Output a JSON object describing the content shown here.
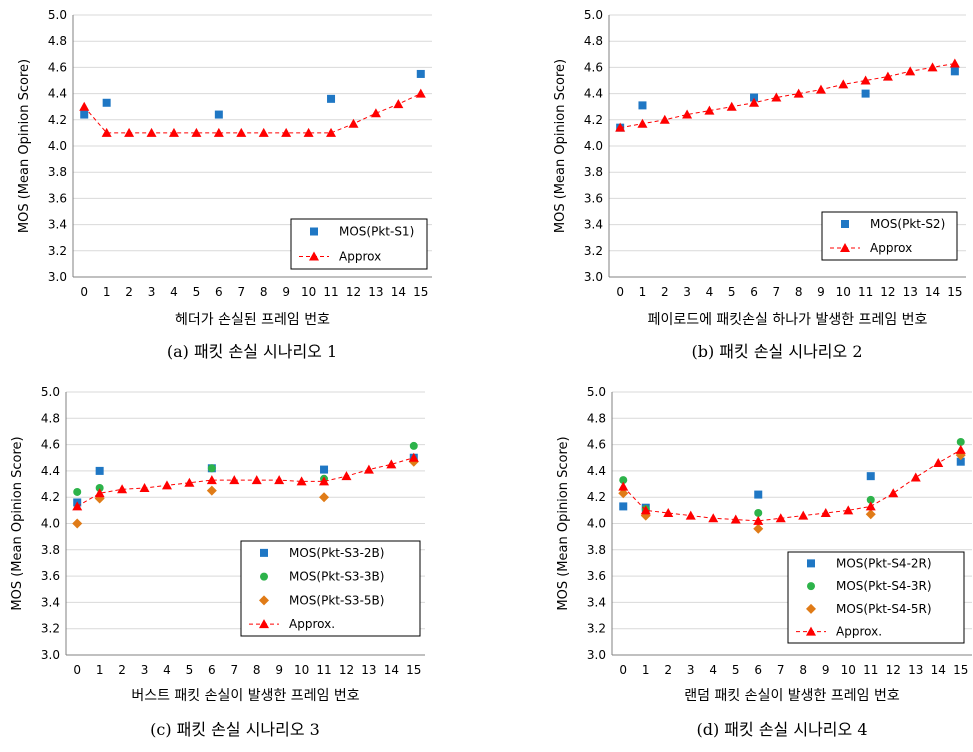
{
  "colors": {
    "blue": "#1f77c4",
    "green": "#2db34a",
    "orange": "#e07b17",
    "red": "#ff0000",
    "grid": "#d9d9d9",
    "axis": "#808080",
    "text": "#000000"
  },
  "chart_data": [
    {
      "id": "a",
      "type": "scatter",
      "caption": "(a)  패킷  손실  시나리오  1",
      "xlabel": "헤더가 손실된 프레임 번호",
      "ylabel": "MOS (Mean Opinion Score)",
      "ylim": [
        3.0,
        5.0
      ],
      "xlim": [
        -0.5,
        15.5
      ],
      "yticks": [
        "3.0",
        "3.2",
        "3.4",
        "3.6",
        "3.8",
        "4.0",
        "4.2",
        "4.4",
        "4.6",
        "4.8",
        "5.0"
      ],
      "xticks": [
        "0",
        "1",
        "2",
        "3",
        "4",
        "5",
        "6",
        "7",
        "8",
        "9",
        "10",
        "11",
        "12",
        "13",
        "14",
        "15"
      ],
      "grid": true,
      "legend": "bottom-right",
      "series": [
        {
          "name": "MOS(Pkt-S1)",
          "marker": "square",
          "color": "blue",
          "x": [
            0,
            1,
            6,
            11,
            15
          ],
          "y": [
            4.24,
            4.33,
            4.24,
            4.36,
            4.55
          ]
        },
        {
          "name": "Approx",
          "marker": "triangle",
          "color": "red",
          "line": "dashed",
          "x": [
            0,
            1,
            2,
            3,
            4,
            5,
            6,
            7,
            8,
            9,
            10,
            11,
            12,
            13,
            14,
            15
          ],
          "y": [
            4.3,
            4.1,
            4.1,
            4.1,
            4.1,
            4.1,
            4.1,
            4.1,
            4.1,
            4.1,
            4.1,
            4.1,
            4.17,
            4.25,
            4.32,
            4.4
          ]
        }
      ]
    },
    {
      "id": "b",
      "type": "scatter",
      "caption": "(b)  패킷  손실  시나리오  2",
      "xlabel": "페이로드에 패킷손실 하나가 발생한 프레임 번호",
      "ylabel": "MOS (Mean Opinion Score)",
      "ylim": [
        3.0,
        5.0
      ],
      "xlim": [
        -0.5,
        15.5
      ],
      "yticks": [
        "3.0",
        "3.2",
        "3.4",
        "3.6",
        "3.8",
        "4.0",
        "4.2",
        "4.4",
        "4.6",
        "4.8",
        "5.0"
      ],
      "xticks": [
        "0",
        "1",
        "2",
        "3",
        "4",
        "5",
        "6",
        "7",
        "8",
        "9",
        "10",
        "11",
        "12",
        "13",
        "14",
        "15"
      ],
      "grid": true,
      "legend": "bottom-right",
      "series": [
        {
          "name": "MOS(Pkt-S2)",
          "marker": "square",
          "color": "blue",
          "x": [
            0,
            1,
            6,
            11,
            15
          ],
          "y": [
            4.14,
            4.31,
            4.37,
            4.4,
            4.57
          ]
        },
        {
          "name": "Approx",
          "marker": "triangle",
          "color": "red",
          "line": "dashed",
          "x": [
            0,
            1,
            2,
            3,
            4,
            5,
            6,
            7,
            8,
            9,
            10,
            11,
            12,
            13,
            14,
            15
          ],
          "y": [
            4.14,
            4.17,
            4.2,
            4.24,
            4.27,
            4.3,
            4.33,
            4.37,
            4.4,
            4.43,
            4.47,
            4.5,
            4.53,
            4.57,
            4.6,
            4.63
          ]
        }
      ]
    },
    {
      "id": "c",
      "type": "scatter",
      "caption": "(c)  패킷  손실  시나리오  3",
      "xlabel": "버스트 패킷 손실이 발생한 프레임 번호",
      "ylabel": "MOS (Mean Opinion Score)",
      "ylim": [
        3.0,
        5.0
      ],
      "xlim": [
        -0.5,
        15.5
      ],
      "yticks": [
        "3.0",
        "3.2",
        "3.4",
        "3.6",
        "3.8",
        "4.0",
        "4.2",
        "4.4",
        "4.6",
        "4.8",
        "5.0"
      ],
      "xticks": [
        "0",
        "1",
        "2",
        "3",
        "4",
        "5",
        "6",
        "7",
        "8",
        "9",
        "10",
        "11",
        "12",
        "13",
        "14",
        "15"
      ],
      "grid": true,
      "legend": "bottom-right",
      "series": [
        {
          "name": "MOS(Pkt-S3-2B)",
          "marker": "square",
          "color": "blue",
          "x": [
            0,
            1,
            6,
            11,
            15
          ],
          "y": [
            4.16,
            4.4,
            4.42,
            4.41,
            4.5
          ]
        },
        {
          "name": "MOS(Pkt-S3-3B)",
          "marker": "circle",
          "color": "green",
          "x": [
            0,
            1,
            6,
            11,
            15
          ],
          "y": [
            4.24,
            4.27,
            4.42,
            4.34,
            4.59
          ]
        },
        {
          "name": "MOS(Pkt-S3-5B)",
          "marker": "diamond",
          "color": "orange",
          "x": [
            0,
            1,
            6,
            11,
            15
          ],
          "y": [
            4.0,
            4.19,
            4.25,
            4.2,
            4.47
          ]
        },
        {
          "name": "Approx.",
          "marker": "triangle",
          "color": "red",
          "line": "dashed",
          "x": [
            0,
            1,
            2,
            3,
            4,
            5,
            6,
            7,
            8,
            9,
            10,
            11,
            12,
            13,
            14,
            15
          ],
          "y": [
            4.13,
            4.23,
            4.26,
            4.27,
            4.29,
            4.31,
            4.33,
            4.33,
            4.33,
            4.33,
            4.32,
            4.32,
            4.36,
            4.41,
            4.45,
            4.5
          ]
        }
      ]
    },
    {
      "id": "d",
      "type": "scatter",
      "caption": "(d)  패킷  손실  시나리오  4",
      "xlabel": "랜덤 패킷 손실이 발생한 프레임 번호",
      "ylabel": "MOS (Mean Opinion Score)",
      "ylim": [
        3.0,
        5.0
      ],
      "xlim": [
        -0.5,
        15.5
      ],
      "yticks": [
        "3.0",
        "3.2",
        "3.4",
        "3.6",
        "3.8",
        "4.0",
        "4.2",
        "4.4",
        "4.6",
        "4.8",
        "5.0"
      ],
      "xticks": [
        "0",
        "1",
        "2",
        "3",
        "4",
        "5",
        "6",
        "7",
        "8",
        "9",
        "10",
        "11",
        "12",
        "13",
        "14",
        "15"
      ],
      "grid": true,
      "legend": "bottom-right",
      "series": [
        {
          "name": "MOS(Pkt-S4-2R)",
          "marker": "square",
          "color": "blue",
          "x": [
            0,
            1,
            6,
            11,
            15
          ],
          "y": [
            4.13,
            4.12,
            4.22,
            4.36,
            4.47
          ]
        },
        {
          "name": "MOS(Pkt-S4-3R)",
          "marker": "circle",
          "color": "green",
          "x": [
            0,
            1,
            6,
            11,
            15
          ],
          "y": [
            4.33,
            4.11,
            4.08,
            4.18,
            4.62
          ]
        },
        {
          "name": "MOS(Pkt-S4-5R)",
          "marker": "diamond",
          "color": "orange",
          "x": [
            0,
            1,
            6,
            11,
            15
          ],
          "y": [
            4.23,
            4.06,
            3.96,
            4.07,
            4.52
          ]
        },
        {
          "name": "Approx.",
          "marker": "triangle",
          "color": "red",
          "line": "dashed",
          "x": [
            0,
            1,
            2,
            3,
            4,
            5,
            6,
            7,
            8,
            9,
            10,
            11,
            12,
            13,
            14,
            15
          ],
          "y": [
            4.28,
            4.1,
            4.08,
            4.06,
            4.04,
            4.03,
            4.02,
            4.04,
            4.06,
            4.08,
            4.1,
            4.13,
            4.23,
            4.35,
            4.46,
            4.56
          ]
        }
      ]
    }
  ]
}
